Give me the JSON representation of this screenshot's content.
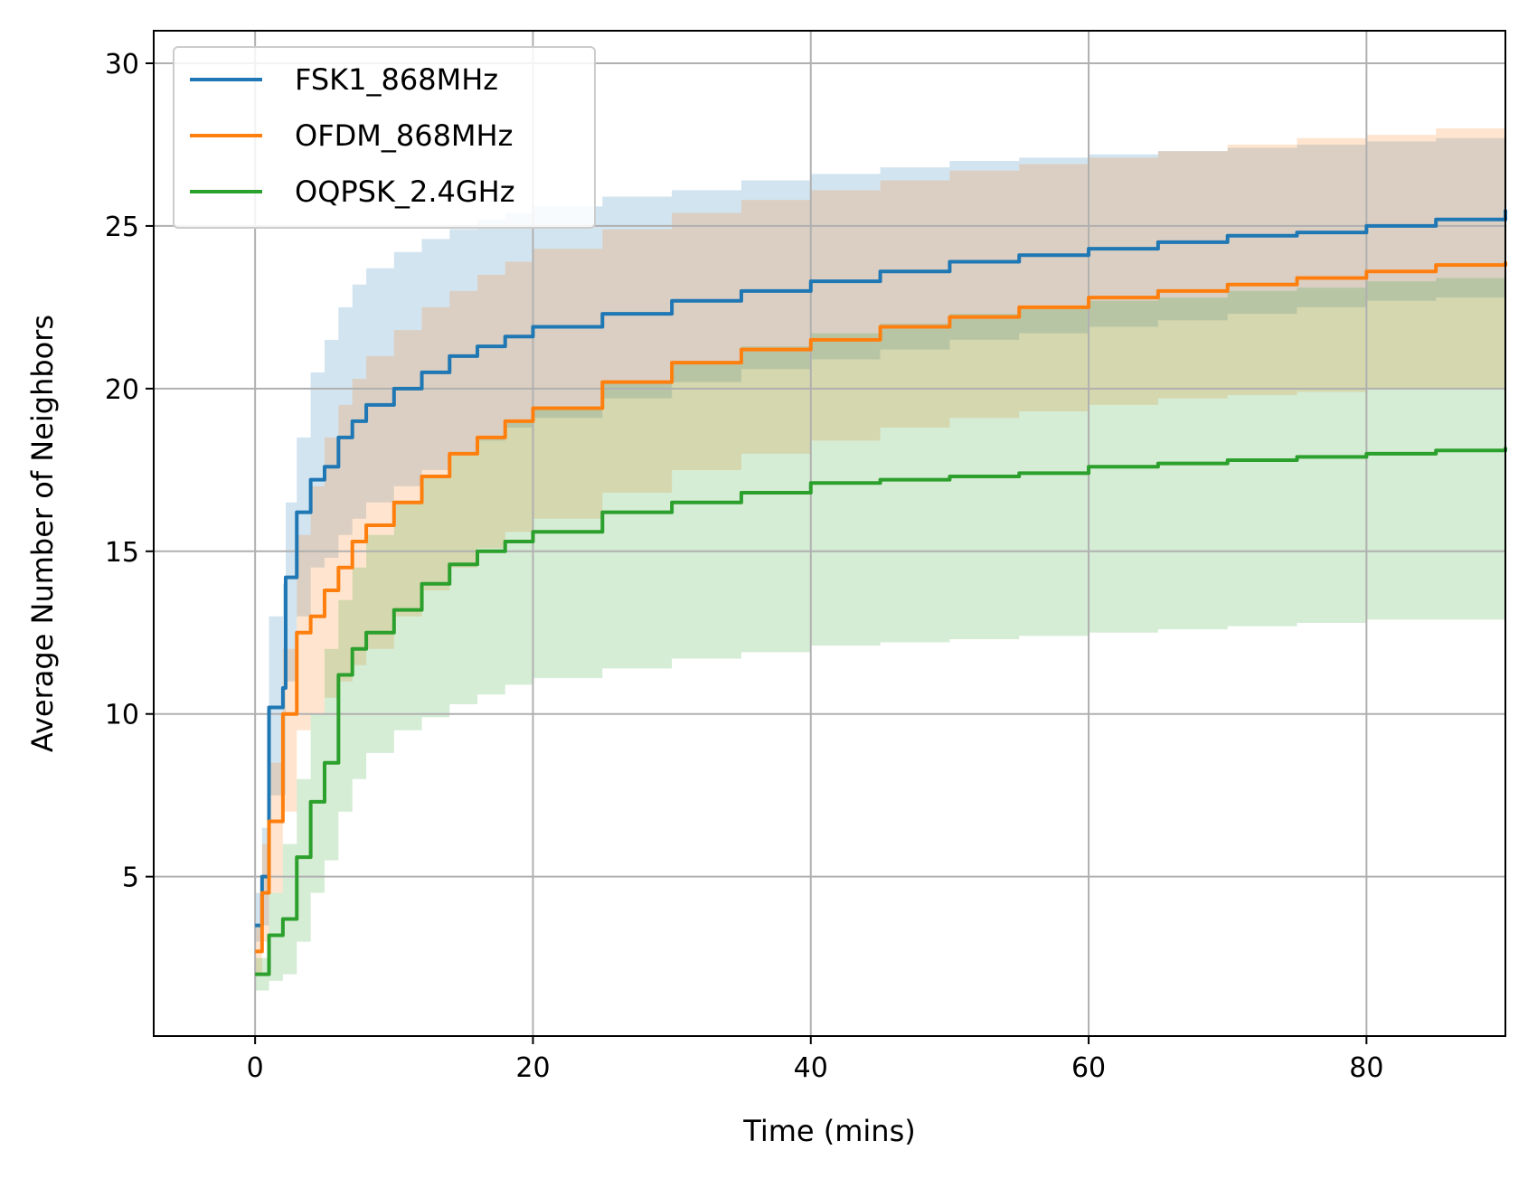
{
  "chart_data": {
    "type": "line",
    "title": "",
    "xlabel": "Time (mins)",
    "ylabel": "Average Number of Neighbors",
    "xlim": [
      -7.3,
      90
    ],
    "ylim": [
      0.1,
      31.0
    ],
    "xticks": [
      0,
      20,
      40,
      60,
      80
    ],
    "yticks": [
      5,
      10,
      15,
      20,
      25,
      30
    ],
    "grid": true,
    "legend_position": "top-left",
    "series": [
      {
        "name": "FSK1_868MHz",
        "color": "#1f77b4",
        "band_color": "#1f77b4",
        "band_opacity": 0.2,
        "x": [
          0,
          0.5,
          1,
          2,
          2.2,
          3,
          4,
          5,
          6,
          7,
          8,
          10,
          12,
          14,
          16,
          18,
          20,
          25,
          30,
          35,
          40,
          45,
          50,
          55,
          60,
          65,
          70,
          75,
          80,
          85,
          90
        ],
        "y": [
          3.5,
          5.0,
          10.2,
          10.8,
          14.2,
          16.2,
          17.2,
          17.6,
          18.5,
          19.0,
          19.5,
          20.0,
          20.5,
          21.0,
          21.3,
          21.6,
          21.9,
          22.3,
          22.7,
          23.0,
          23.3,
          23.6,
          23.9,
          24.1,
          24.3,
          24.5,
          24.7,
          24.8,
          25.0,
          25.2,
          25.5
        ],
        "upper": [
          4.5,
          6.5,
          13.0,
          14.0,
          16.5,
          18.5,
          20.5,
          21.5,
          22.5,
          23.2,
          23.7,
          24.2,
          24.6,
          24.9,
          25.2,
          25.4,
          25.6,
          25.9,
          26.1,
          26.4,
          26.6,
          26.8,
          27.0,
          27.1,
          27.2,
          27.3,
          27.4,
          27.5,
          27.6,
          27.7,
          27.9
        ],
        "lower": [
          3.0,
          3.5,
          7.5,
          7.5,
          11.0,
          13.0,
          14.5,
          14.8,
          15.5,
          16.0,
          16.5,
          17.0,
          17.5,
          18.0,
          18.4,
          18.8,
          19.1,
          19.7,
          20.2,
          20.6,
          20.9,
          21.2,
          21.5,
          21.7,
          21.9,
          22.1,
          22.3,
          22.5,
          22.7,
          22.8,
          23.0
        ]
      },
      {
        "name": "OFDM_868MHz",
        "color": "#ff7f0e",
        "band_color": "#ff7f0e",
        "band_opacity": 0.2,
        "x": [
          0,
          0.5,
          1,
          2,
          3,
          4,
          5,
          6,
          7,
          8,
          10,
          12,
          14,
          16,
          18,
          20,
          25,
          30,
          35,
          40,
          45,
          50,
          55,
          60,
          65,
          70,
          75,
          80,
          85,
          90
        ],
        "y": [
          2.7,
          4.5,
          6.7,
          10.0,
          12.5,
          13.0,
          13.8,
          14.5,
          15.3,
          15.8,
          16.5,
          17.3,
          18.0,
          18.5,
          19.0,
          19.4,
          20.2,
          20.8,
          21.2,
          21.5,
          21.9,
          22.2,
          22.5,
          22.8,
          23.0,
          23.2,
          23.4,
          23.6,
          23.8,
          23.9
        ],
        "upper": [
          3.5,
          6.0,
          8.5,
          12.0,
          15.5,
          17.0,
          18.5,
          19.5,
          20.3,
          21.0,
          21.8,
          22.5,
          23.0,
          23.5,
          23.9,
          24.3,
          24.9,
          25.4,
          25.8,
          26.1,
          26.4,
          26.7,
          26.9,
          27.1,
          27.3,
          27.5,
          27.7,
          27.8,
          28.0,
          28.1
        ],
        "lower": [
          2.0,
          3.0,
          4.5,
          7.0,
          9.5,
          10.0,
          10.5,
          11.0,
          11.5,
          12.0,
          13.0,
          13.8,
          14.5,
          15.1,
          15.6,
          16.0,
          16.8,
          17.5,
          18.0,
          18.4,
          18.8,
          19.1,
          19.3,
          19.5,
          19.7,
          19.8,
          19.9,
          20.0,
          20.0,
          20.0
        ]
      },
      {
        "name": "OQPSK_2.4GHz",
        "color": "#2ca02c",
        "band_color": "#2ca02c",
        "band_opacity": 0.2,
        "x": [
          0,
          1,
          2,
          3,
          4,
          5,
          6,
          7,
          8,
          10,
          12,
          14,
          16,
          18,
          20,
          25,
          30,
          35,
          40,
          45,
          50,
          55,
          60,
          65,
          70,
          75,
          80,
          85,
          90
        ],
        "y": [
          2.0,
          3.2,
          3.7,
          5.6,
          7.3,
          8.5,
          11.2,
          12.0,
          12.5,
          13.2,
          14.0,
          14.6,
          15.0,
          15.3,
          15.6,
          16.2,
          16.5,
          16.8,
          17.1,
          17.2,
          17.3,
          17.4,
          17.6,
          17.7,
          17.8,
          17.9,
          18.0,
          18.1,
          18.2
        ],
        "upper": [
          2.5,
          4.5,
          6.0,
          8.0,
          10.0,
          12.0,
          13.5,
          14.5,
          15.5,
          16.5,
          17.3,
          18.0,
          18.5,
          19.0,
          19.4,
          20.2,
          20.8,
          21.3,
          21.7,
          22.0,
          22.3,
          22.5,
          22.7,
          22.8,
          23.0,
          23.1,
          23.3,
          23.4,
          23.5
        ],
        "lower": [
          1.5,
          1.8,
          2.0,
          3.0,
          4.5,
          5.5,
          7.0,
          8.0,
          8.8,
          9.5,
          9.9,
          10.3,
          10.6,
          10.9,
          11.1,
          11.4,
          11.7,
          11.9,
          12.1,
          12.2,
          12.3,
          12.4,
          12.5,
          12.6,
          12.7,
          12.8,
          12.9,
          12.9,
          13.0
        ]
      }
    ]
  }
}
